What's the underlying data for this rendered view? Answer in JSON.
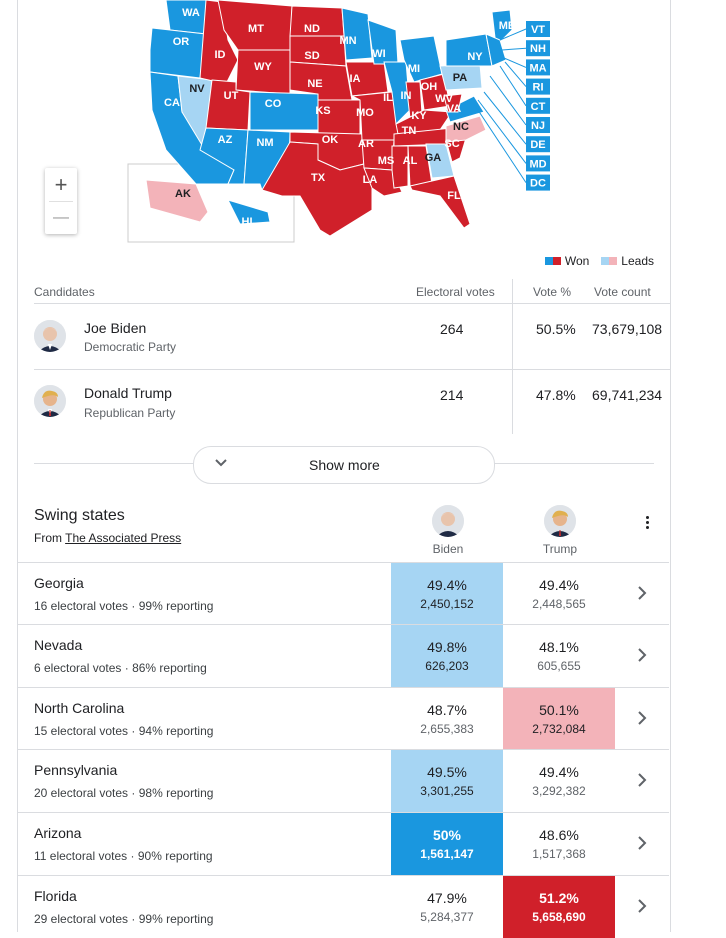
{
  "map": {
    "zoom_in": "+",
    "zoom_out": "—",
    "states": [
      {
        "abbr": "WA",
        "party": "dem",
        "status": "won"
      },
      {
        "abbr": "OR",
        "party": "dem",
        "status": "won"
      },
      {
        "abbr": "CA",
        "party": "dem",
        "status": "won"
      },
      {
        "abbr": "NV",
        "party": "dem",
        "status": "leads"
      },
      {
        "abbr": "ID",
        "party": "rep",
        "status": "won"
      },
      {
        "abbr": "MT",
        "party": "rep",
        "status": "won"
      },
      {
        "abbr": "WY",
        "party": "rep",
        "status": "won"
      },
      {
        "abbr": "UT",
        "party": "rep",
        "status": "won"
      },
      {
        "abbr": "CO",
        "party": "dem",
        "status": "won"
      },
      {
        "abbr": "AZ",
        "party": "dem",
        "status": "won"
      },
      {
        "abbr": "NM",
        "party": "dem",
        "status": "won"
      },
      {
        "abbr": "ND",
        "party": "rep",
        "status": "won"
      },
      {
        "abbr": "SD",
        "party": "rep",
        "status": "won"
      },
      {
        "abbr": "NE",
        "party": "rep",
        "status": "won"
      },
      {
        "abbr": "KS",
        "party": "rep",
        "status": "won"
      },
      {
        "abbr": "OK",
        "party": "rep",
        "status": "won"
      },
      {
        "abbr": "TX",
        "party": "rep",
        "status": "won"
      },
      {
        "abbr": "MN",
        "party": "dem",
        "status": "won"
      },
      {
        "abbr": "IA",
        "party": "rep",
        "status": "won"
      },
      {
        "abbr": "MO",
        "party": "rep",
        "status": "won"
      },
      {
        "abbr": "AR",
        "party": "rep",
        "status": "won"
      },
      {
        "abbr": "LA",
        "party": "rep",
        "status": "won"
      },
      {
        "abbr": "WI",
        "party": "dem",
        "status": "won"
      },
      {
        "abbr": "IL",
        "party": "dem",
        "status": "won"
      },
      {
        "abbr": "MI",
        "party": "dem",
        "status": "won"
      },
      {
        "abbr": "IN",
        "party": "rep",
        "status": "won"
      },
      {
        "abbr": "OH",
        "party": "rep",
        "status": "won"
      },
      {
        "abbr": "KY",
        "party": "rep",
        "status": "won"
      },
      {
        "abbr": "TN",
        "party": "rep",
        "status": "won"
      },
      {
        "abbr": "MS",
        "party": "rep",
        "status": "won"
      },
      {
        "abbr": "AL",
        "party": "rep",
        "status": "won"
      },
      {
        "abbr": "GA",
        "party": "dem",
        "status": "leads"
      },
      {
        "abbr": "FL",
        "party": "rep",
        "status": "won"
      },
      {
        "abbr": "SC",
        "party": "rep",
        "status": "won"
      },
      {
        "abbr": "NC",
        "party": "rep",
        "status": "leads"
      },
      {
        "abbr": "VA",
        "party": "dem",
        "status": "won"
      },
      {
        "abbr": "WV",
        "party": "rep",
        "status": "won"
      },
      {
        "abbr": "PA",
        "party": "dem",
        "status": "leads"
      },
      {
        "abbr": "NY",
        "party": "dem",
        "status": "won"
      },
      {
        "abbr": "ME",
        "party": "dem",
        "status": "won"
      },
      {
        "abbr": "AK",
        "party": "rep",
        "status": "leads"
      },
      {
        "abbr": "HI",
        "party": "dem",
        "status": "won"
      }
    ],
    "northeast_boxes": [
      "VT",
      "NH",
      "MA",
      "RI",
      "CT",
      "NJ",
      "DE",
      "MD",
      "DC"
    ]
  },
  "legend": {
    "won": "Won",
    "leads": "Leads"
  },
  "colors": {
    "dem_won": "#1a97df",
    "dem_leads": "#a6d5f3",
    "rep_won": "#d0202a",
    "rep_leads": "#f3b3b9"
  },
  "candidates_table": {
    "headers": {
      "candidates": "Candidates",
      "electoral": "Electoral votes",
      "vote_pct": "Vote %",
      "vote_count": "Vote count"
    },
    "rows": [
      {
        "name": "Joe Biden",
        "party": "Democratic Party",
        "electoral": "264",
        "pct": "50.5%",
        "count": "73,679,108"
      },
      {
        "name": "Donald Trump",
        "party": "Republican Party",
        "electoral": "214",
        "pct": "47.8%",
        "count": "69,741,234"
      }
    ],
    "show_more": "Show more"
  },
  "swing": {
    "title": "Swing states",
    "source_prefix": "From ",
    "source": "The Associated Press",
    "biden": "Biden",
    "trump": "Trump",
    "rows": [
      {
        "state": "Georgia",
        "ev": "16 electoral votes",
        "rep": "99% reporting",
        "b_pct": "49.4%",
        "b_cnt": "2,450,152",
        "t_pct": "49.4%",
        "t_cnt": "2,448,565",
        "b_style": "lt-blue",
        "t_style": ""
      },
      {
        "state": "Nevada",
        "ev": "6 electoral votes",
        "rep": "86% reporting",
        "b_pct": "49.8%",
        "b_cnt": "626,203",
        "t_pct": "48.1%",
        "t_cnt": "605,655",
        "b_style": "lt-blue",
        "t_style": ""
      },
      {
        "state": "North Carolina",
        "ev": "15 electoral votes",
        "rep": "94% reporting",
        "b_pct": "48.7%",
        "b_cnt": "2,655,383",
        "t_pct": "50.1%",
        "t_cnt": "2,732,084",
        "b_style": "",
        "t_style": "lt-red"
      },
      {
        "state": "Pennsylvania",
        "ev": "20 electoral votes",
        "rep": "98% reporting",
        "b_pct": "49.5%",
        "b_cnt": "3,301,255",
        "t_pct": "49.4%",
        "t_cnt": "3,292,382",
        "b_style": "lt-blue",
        "t_style": ""
      },
      {
        "state": "Arizona",
        "ev": "11 electoral votes",
        "rep": "90% reporting",
        "b_pct": "50%",
        "b_cnt": "1,561,147",
        "t_pct": "48.6%",
        "t_cnt": "1,517,368",
        "b_style": "dk-blue",
        "t_style": ""
      },
      {
        "state": "Florida",
        "ev": "29 electoral votes",
        "rep": "99% reporting",
        "b_pct": "47.9%",
        "b_cnt": "5,284,377",
        "t_pct": "51.2%",
        "t_cnt": "5,658,690",
        "b_style": "",
        "t_style": "dk-red"
      }
    ]
  }
}
